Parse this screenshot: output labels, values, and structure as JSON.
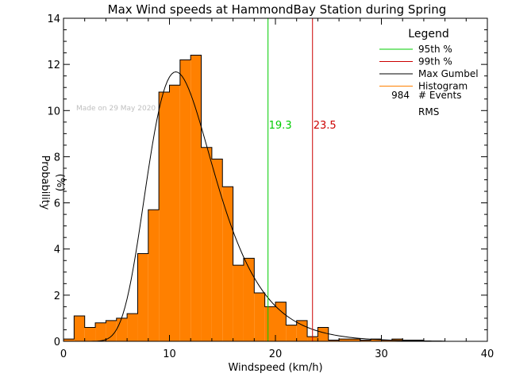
{
  "chart_data": {
    "type": "bar",
    "title": "Max Wind speeds at HammondBay Station during Spring",
    "xlabel": "Windspeed (km/h)",
    "ylabel": "Probability",
    "ylabel_unit": "(%)",
    "xlim": [
      0,
      40
    ],
    "ylim": [
      0,
      14
    ],
    "x_ticks": [
      0,
      10,
      20,
      30,
      40
    ],
    "y_ticks": [
      0,
      2,
      4,
      6,
      8,
      10,
      12,
      14
    ],
    "bin_width": 1,
    "histogram": {
      "bin_starts": [
        0,
        1,
        2,
        3,
        4,
        5,
        6,
        7,
        8,
        9,
        10,
        11,
        12,
        13,
        14,
        15,
        16,
        17,
        18,
        19,
        20,
        21,
        22,
        23,
        24,
        25,
        26,
        27,
        28,
        29,
        30,
        31,
        32,
        33,
        34,
        35,
        36,
        37,
        38,
        39
      ],
      "values": [
        0.1,
        1.1,
        0.6,
        0.8,
        0.9,
        1.0,
        1.2,
        3.8,
        5.7,
        10.8,
        11.1,
        12.2,
        12.4,
        8.4,
        7.9,
        6.7,
        3.3,
        3.6,
        2.1,
        1.5,
        1.7,
        0.7,
        0.9,
        0.2,
        0.6,
        0.05,
        0.1,
        0.1,
        0.05,
        0.1,
        0.05,
        0.1,
        0.05,
        0.05,
        0,
        0,
        0,
        0,
        0,
        0
      ]
    },
    "gumbel_fit": {
      "mode": 10.6,
      "scale": 3.15
    },
    "percentile_95": 19.3,
    "percentile_99": 23.5,
    "percentile_95_label": "19.3",
    "percentile_99_label": "23.5",
    "events_count": "984",
    "watermark": "Made on 29 May 2020",
    "legend": {
      "title": "Legend",
      "placement": "top-right",
      "items": [
        {
          "label": "95th %",
          "color": "#00cc00"
        },
        {
          "label": "99th %",
          "color": "#cc0000"
        },
        {
          "label": "Max Gumbel",
          "color": "#000000"
        },
        {
          "label": "Histogram",
          "color": "#ff8000"
        }
      ],
      "events_label": "# Events",
      "rms_label": "RMS"
    },
    "colors": {
      "histogram": "#ff8000",
      "p95": "#00cc00",
      "p99": "#cc0000",
      "fit": "#000000"
    }
  }
}
